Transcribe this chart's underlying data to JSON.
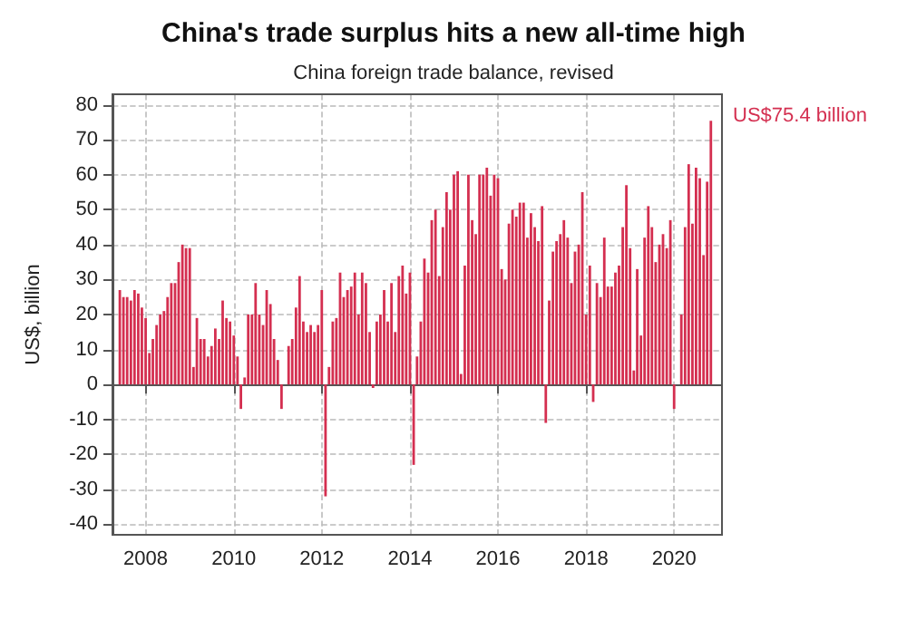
{
  "chart_data": {
    "type": "bar",
    "title": "China's trade surplus hits a new all-time high",
    "subtitle": "China foreign trade balance, revised",
    "ylabel": "US$, billion",
    "x": [
      "2007-06",
      "2007-07",
      "2007-08",
      "2007-09",
      "2007-10",
      "2007-11",
      "2007-12",
      "2008-01",
      "2008-02",
      "2008-03",
      "2008-04",
      "2008-05",
      "2008-06",
      "2008-07",
      "2008-08",
      "2008-09",
      "2008-10",
      "2008-11",
      "2008-12",
      "2009-01",
      "2009-02",
      "2009-03",
      "2009-04",
      "2009-05",
      "2009-06",
      "2009-07",
      "2009-08",
      "2009-09",
      "2009-10",
      "2009-11",
      "2009-12",
      "2010-01",
      "2010-02",
      "2010-03",
      "2010-04",
      "2010-05",
      "2010-06",
      "2010-07",
      "2010-08",
      "2010-09",
      "2010-10",
      "2010-11",
      "2010-12",
      "2011-01",
      "2011-02",
      "2011-03",
      "2011-04",
      "2011-05",
      "2011-06",
      "2011-07",
      "2011-08",
      "2011-09",
      "2011-10",
      "2011-11",
      "2011-12",
      "2012-01",
      "2012-02",
      "2012-03",
      "2012-04",
      "2012-05",
      "2012-06",
      "2012-07",
      "2012-08",
      "2012-09",
      "2012-10",
      "2012-11",
      "2012-12",
      "2013-01",
      "2013-02",
      "2013-03",
      "2013-04",
      "2013-05",
      "2013-06",
      "2013-07",
      "2013-08",
      "2013-09",
      "2013-10",
      "2013-11",
      "2013-12",
      "2014-01",
      "2014-02",
      "2014-03",
      "2014-04",
      "2014-05",
      "2014-06",
      "2014-07",
      "2014-08",
      "2014-09",
      "2014-10",
      "2014-11",
      "2014-12",
      "2015-01",
      "2015-02",
      "2015-03",
      "2015-04",
      "2015-05",
      "2015-06",
      "2015-07",
      "2015-08",
      "2015-09",
      "2015-10",
      "2015-11",
      "2015-12",
      "2016-01",
      "2016-02",
      "2016-03",
      "2016-04",
      "2016-05",
      "2016-06",
      "2016-07",
      "2016-08",
      "2016-09",
      "2016-10",
      "2016-11",
      "2016-12",
      "2017-01",
      "2017-02",
      "2017-03",
      "2017-04",
      "2017-05",
      "2017-06",
      "2017-07",
      "2017-08",
      "2017-09",
      "2017-10",
      "2017-11",
      "2017-12",
      "2018-01",
      "2018-02",
      "2018-03",
      "2018-04",
      "2018-05",
      "2018-06",
      "2018-07",
      "2018-08",
      "2018-09",
      "2018-10",
      "2018-11",
      "2018-12",
      "2019-01",
      "2019-02",
      "2019-03",
      "2019-04",
      "2019-05",
      "2019-06",
      "2019-07",
      "2019-08",
      "2019-09",
      "2019-10",
      "2019-11",
      "2019-12",
      "2020-01",
      "2020-03",
      "2020-04",
      "2020-05",
      "2020-06",
      "2020-07",
      "2020-08",
      "2020-09",
      "2020-10",
      "2020-11"
    ],
    "series": [
      {
        "color": "#d42f50",
        "values": [
          27,
          25,
          25,
          24,
          27,
          26,
          22,
          19,
          9,
          13,
          17,
          20,
          21,
          25,
          29,
          29,
          35,
          40,
          39,
          39,
          5,
          19,
          13,
          13,
          8,
          11,
          16,
          13,
          24,
          19,
          18,
          14,
          8,
          -7,
          2,
          20,
          20,
          29,
          20,
          17,
          27,
          23,
          13,
          7,
          -7,
          0,
          11,
          13,
          22,
          31,
          18,
          15,
          17,
          15,
          17,
          27,
          -32,
          5,
          18,
          19,
          32,
          25,
          27,
          28,
          32,
          20,
          32,
          29,
          15,
          -1,
          18,
          20,
          27,
          18,
          29,
          15,
          31,
          34,
          26,
          32,
          -23,
          8,
          18,
          36,
          32,
          47,
          50,
          31,
          45,
          55,
          50,
          60,
          61,
          3,
          34,
          60,
          47,
          43,
          60,
          60,
          62,
          54,
          60,
          59,
          33,
          30,
          46,
          50,
          48,
          52,
          52,
          42,
          49,
          45,
          41,
          51,
          -11,
          24,
          38,
          41,
          43,
          47,
          42,
          29,
          38,
          40,
          55,
          20,
          34,
          -5,
          29,
          25,
          42,
          28,
          28,
          32,
          34,
          45,
          57,
          39,
          4,
          33,
          14,
          42,
          51,
          45,
          35,
          40,
          43,
          39,
          47,
          -7,
          20,
          45,
          63,
          46,
          62,
          59,
          37,
          58,
          75.4
        ]
      }
    ],
    "xlim": [
      "2007-04",
      "2021-02"
    ],
    "xticks": [
      "2008",
      "2010",
      "2012",
      "2014",
      "2016",
      "2018",
      "2020"
    ],
    "ylim": [
      -43,
      83
    ],
    "yticks": [
      -40,
      -30,
      -20,
      -10,
      0,
      10,
      20,
      30,
      40,
      50,
      60,
      70,
      80
    ],
    "grid": true,
    "annotations": [
      {
        "text": "US$75.4 billion",
        "x": "2020-11",
        "y": 75.4
      }
    ]
  }
}
